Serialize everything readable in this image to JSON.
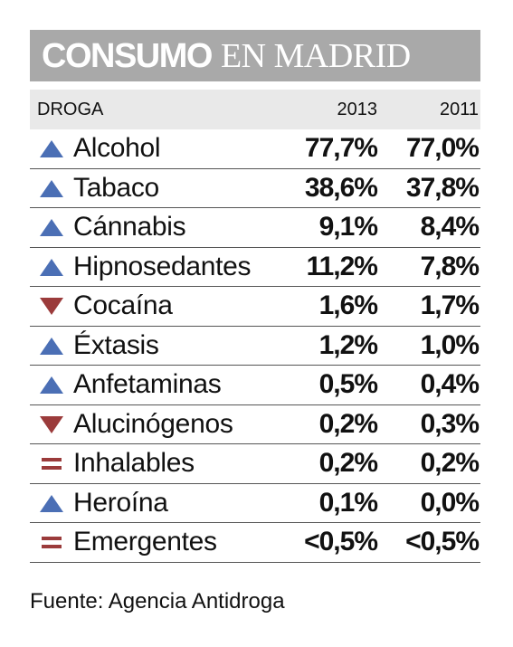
{
  "colors": {
    "up": "#4b6fb5",
    "down": "#9b3b3b",
    "equal": "#9b3b3b",
    "title_bg": "#a9a9a9",
    "header_bg": "#e9e9e9"
  },
  "title": {
    "bold": "CONSUMO",
    "light": "EN MADRID"
  },
  "header": {
    "col_name": "DROGA",
    "col_2013": "2013",
    "col_2011": "2011"
  },
  "rows": [
    {
      "trend": "up-triangle-icon",
      "name": "Alcohol",
      "v2013": "77,7%",
      "v2011": "77,0%"
    },
    {
      "trend": "up-triangle-icon",
      "name": "Tabaco",
      "v2013": "38,6%",
      "v2011": "37,8%"
    },
    {
      "trend": "up-triangle-icon",
      "name": "Cánnabis",
      "v2013": "9,1%",
      "v2011": "8,4%"
    },
    {
      "trend": "up-triangle-icon",
      "name": "Hipnosedantes",
      "v2013": "11,2%",
      "v2011": "7,8%"
    },
    {
      "trend": "down-triangle-icon",
      "name": "Cocaína",
      "v2013": "1,6%",
      "v2011": "1,7%"
    },
    {
      "trend": "up-triangle-icon",
      "name": "Éxtasis",
      "v2013": "1,2%",
      "v2011": "1,0%"
    },
    {
      "trend": "up-triangle-icon",
      "name": "Anfetaminas",
      "v2013": "0,5%",
      "v2011": "0,4%"
    },
    {
      "trend": "down-triangle-icon",
      "name": "Alucinógenos",
      "v2013": "0,2%",
      "v2011": "0,3%"
    },
    {
      "trend": "equal-sign-icon",
      "name": "Inhalables",
      "v2013": "0,2%",
      "v2011": "0,2%"
    },
    {
      "trend": "up-triangle-icon",
      "name": "Heroína",
      "v2013": "0,1%",
      "v2011": "0,0%"
    },
    {
      "trend": "equal-sign-icon",
      "name": "Emergentes",
      "v2013": "<0,5%",
      "v2011": "<0,5%"
    }
  ],
  "source": "Fuente: Agencia Antidroga"
}
